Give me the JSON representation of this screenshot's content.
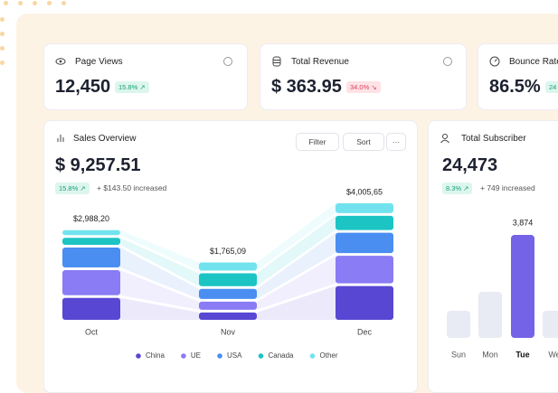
{
  "cards": [
    {
      "title": "Page Views",
      "value": "12,450",
      "badge": "15.8% ↗"
    },
    {
      "title": "Total Revenue",
      "value": "$ 363.95",
      "badge": "34.0% ↘"
    },
    {
      "title": "Bounce Rate",
      "value": "86.5%",
      "badge": "24"
    }
  ],
  "chart_data": [
    {
      "type": "bar",
      "stacked": true,
      "title": "Sales Overview",
      "total": "$ 9,257.51",
      "badge": "15.8% ↗",
      "change": "+ $143.50 increased",
      "buttons": [
        "Filter",
        "Sort",
        "···"
      ],
      "categories": [
        "Oct",
        "Nov",
        "Dec"
      ],
      "total_labels": [
        "$2,988,20",
        "$1,765,09",
        "$4,005,65"
      ],
      "series": [
        {
          "name": "China",
          "color": "#5847d3",
          "values": [
            832.2,
            277,
            1279
          ]
        },
        {
          "name": "UE",
          "color": "#8a7cf4",
          "values": [
            946,
            311,
            1043
          ]
        },
        {
          "name": "USA",
          "color": "#4a8ef2",
          "values": [
            756,
            381,
            774
          ]
        },
        {
          "name": "Canada",
          "color": "#1cc4c4",
          "values": [
            265,
            485,
            539
          ]
        },
        {
          "name": "Other",
          "color": "#72e3ee",
          "values": [
            189,
            311.09,
            370.65
          ]
        }
      ],
      "legend": "bottom"
    },
    {
      "type": "bar",
      "title": "Total Subscriber",
      "total": "24,473",
      "badge": "8.3% ↗",
      "change": "+ 749 increased",
      "categories": [
        "Sun",
        "Mon",
        "Tue",
        "We"
      ],
      "values": [
        1020,
        1735,
        3874,
        1020
      ],
      "value_labels": [
        null,
        null,
        "3,874",
        null
      ],
      "colors": [
        "#e9ebf4",
        "#e9ebf4",
        "#7463e6",
        "#e9ebf4"
      ]
    }
  ]
}
